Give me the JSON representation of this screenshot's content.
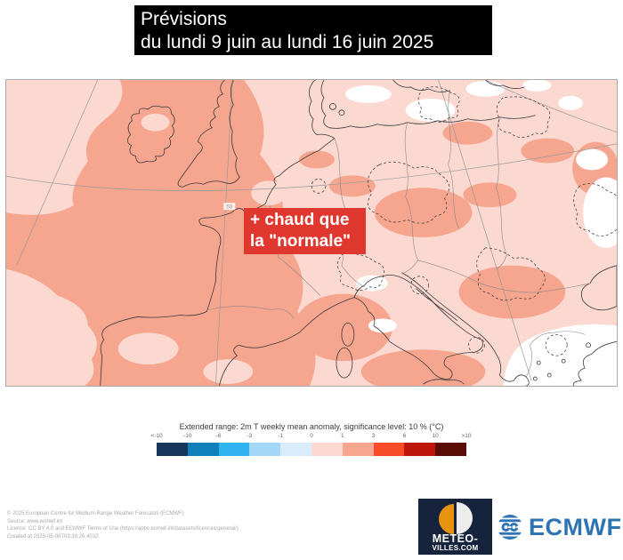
{
  "banner": {
    "line1": "Prévisions",
    "line2": "du lundi 9 juin au lundi 16 juin 2025",
    "bg": "#000000",
    "fg": "#ffffff"
  },
  "map": {
    "annotation_line1": "+ chaud que",
    "annotation_line2": "la \"normale\"",
    "annotation_bg": "#e0372f",
    "graticule_label": "50",
    "palette": {
      "anomaly_1_to_3": "#f6a58f",
      "anomaly_0_to_1": "#fbd8d0",
      "neutral_white": "#ffffff"
    }
  },
  "legend": {
    "title": "Extended range: 2m T weekly mean anomaly, significance level: 10 % (°C)",
    "ticks": [
      "<-10",
      "-10",
      "-6",
      "-3",
      "-1",
      "0",
      "1",
      "3",
      "6",
      "10",
      ">10"
    ],
    "colors": [
      "#16365c",
      "#1080bb",
      "#31b3f0",
      "#a3d7f7",
      "#d9ecfb",
      "#fbd8d2",
      "#f9a691",
      "#f64c27",
      "#bd170b",
      "#5c0c06"
    ]
  },
  "footer": {
    "copyright_lines": [
      "© 2025 European Centre for Medium-Range Weather Forecasts (ECMWF)",
      "Source: www.ecmwf.int",
      "Licence: CC BY 4.0 and ECMWF Terms of Use (https://apps.ecmwf.int/datasets/licences/general/)",
      "Created at 2025-05-08T03:30:26.403Z"
    ],
    "meteo_villes": {
      "line1": "METEO-",
      "line2": "VILLES.COM",
      "bg": "#16233c",
      "orange": "#e8930e"
    },
    "ecmwf_label": "ECMWF",
    "ecmwf_blue": "#2e74b5"
  }
}
